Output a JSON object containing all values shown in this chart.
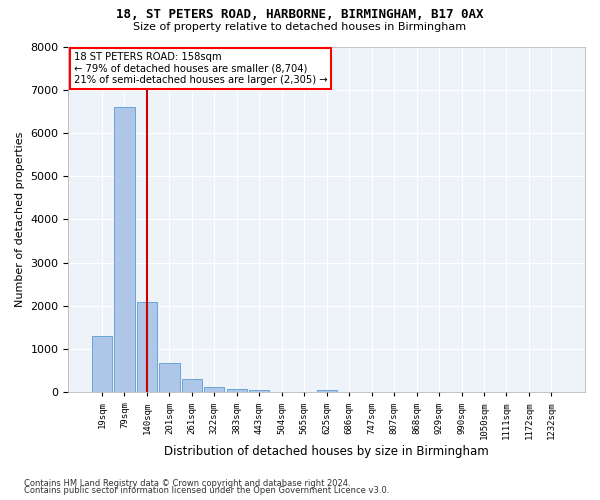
{
  "title1": "18, ST PETERS ROAD, HARBORNE, BIRMINGHAM, B17 0AX",
  "title2": "Size of property relative to detached houses in Birmingham",
  "xlabel": "Distribution of detached houses by size in Birmingham",
  "ylabel": "Number of detached properties",
  "bar_color": "#aec6e8",
  "bar_edge_color": "#5b9bd5",
  "bg_color": "#eef3fa",
  "grid_color": "#ffffff",
  "annotation_text": "18 ST PETERS ROAD: 158sqm\n← 79% of detached houses are smaller (8,704)\n21% of semi-detached houses are larger (2,305) →",
  "vline_pos": 2.0,
  "vline_color": "#cc0000",
  "categories": [
    "19sqm",
    "79sqm",
    "140sqm",
    "201sqm",
    "261sqm",
    "322sqm",
    "383sqm",
    "443sqm",
    "504sqm",
    "565sqm",
    "625sqm",
    "686sqm",
    "747sqm",
    "807sqm",
    "868sqm",
    "929sqm",
    "990sqm",
    "1050sqm",
    "1111sqm",
    "1172sqm",
    "1232sqm"
  ],
  "values": [
    1300,
    6600,
    2080,
    680,
    300,
    120,
    70,
    50,
    0,
    0,
    60,
    0,
    0,
    0,
    0,
    0,
    0,
    0,
    0,
    0,
    0
  ],
  "ylim": [
    0,
    8000
  ],
  "yticks": [
    0,
    1000,
    2000,
    3000,
    4000,
    5000,
    6000,
    7000,
    8000
  ],
  "footnote1": "Contains HM Land Registry data © Crown copyright and database right 2024.",
  "footnote2": "Contains public sector information licensed under the Open Government Licence v3.0."
}
